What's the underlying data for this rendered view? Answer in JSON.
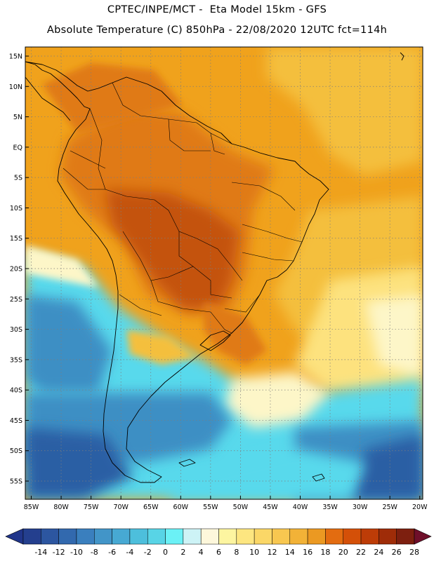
{
  "header": {
    "line1": "CPTEC/INPE/MCT -  Eta Model 15km - GFS",
    "line2": "Absolute Temperature (C) 850hPa - 22/08/2020 12UTC fct=114h"
  },
  "axes": {
    "lat_labels": [
      "15N",
      "10N",
      "5N",
      "EQ",
      "5S",
      "10S",
      "15S",
      "20S",
      "25S",
      "30S",
      "35S",
      "40S",
      "45S",
      "50S",
      "55S"
    ],
    "lat_values": [
      15,
      10,
      5,
      0,
      -5,
      -10,
      -15,
      -20,
      -25,
      -30,
      -35,
      -40,
      -45,
      -50,
      -55
    ],
    "lon_labels": [
      "85W",
      "80W",
      "75W",
      "70W",
      "65W",
      "60W",
      "55W",
      "50W",
      "45W",
      "40W",
      "35W",
      "30W",
      "25W",
      "20W"
    ],
    "lon_values": [
      -85,
      -80,
      -75,
      -70,
      -65,
      -60,
      -55,
      -50,
      -45,
      -40,
      -35,
      -30,
      -25,
      -20
    ],
    "lat_range": [
      -58,
      16.5
    ],
    "lon_range": [
      -86,
      -19.5
    ]
  },
  "colorbar": {
    "unit": "C",
    "labels": [
      "-14",
      "-12",
      "-10",
      "-8",
      "-6",
      "-4",
      "-2",
      "0",
      "2",
      "4",
      "6",
      "8",
      "10",
      "12",
      "14",
      "16",
      "18",
      "20",
      "22",
      "24",
      "26",
      "28"
    ],
    "colors": [
      "#243f8e",
      "#2c56a0",
      "#3269ae",
      "#3a7fbe",
      "#4295c8",
      "#47a9d3",
      "#4dbfdc",
      "#58d4e6",
      "#6bf1f6",
      "#cdf3f6",
      "#fdf7db",
      "#fdf5a0",
      "#fde680",
      "#fbd767",
      "#f8c750",
      "#f2b237",
      "#eb9922",
      "#e36c10",
      "#d45008",
      "#bd3c07",
      "#9f2c08",
      "#7d1f0f"
    ],
    "under_color": "#20358a",
    "over_color": "#6f0f2a"
  },
  "field_colors": {
    "hot": "#c4520f",
    "warm": "#e07a18",
    "mild": "#f0a21c",
    "temperate": "#f4bf3e",
    "cool": "#fde27e",
    "chilly": "#fdf6c8",
    "cold": "#58d9ec",
    "frigid": "#3c8fc4",
    "polar": "#2b5ea4"
  }
}
